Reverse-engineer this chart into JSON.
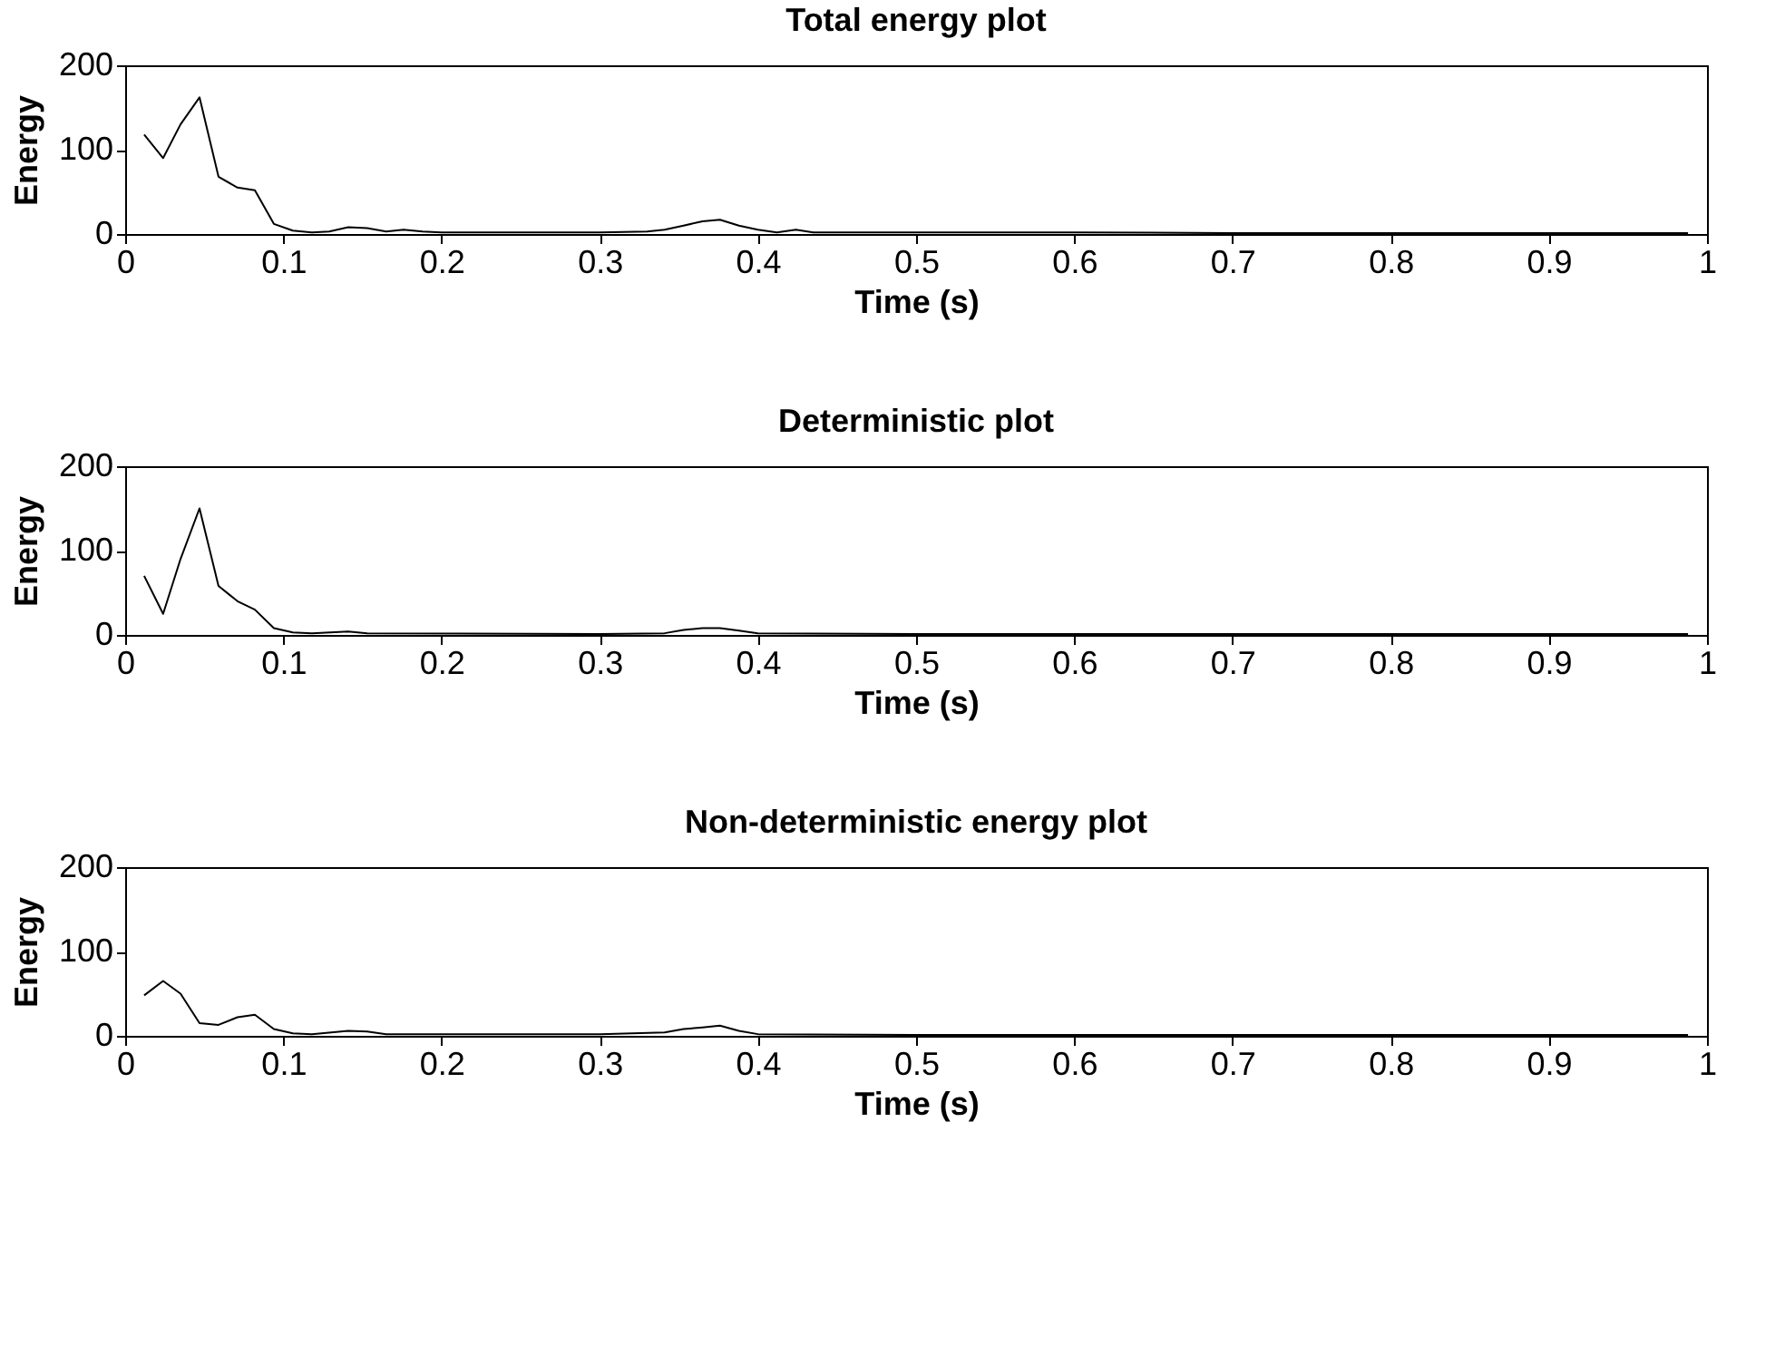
{
  "chart_data": [
    {
      "type": "line",
      "title": "Total energy plot",
      "xlabel": "Time (s)",
      "ylabel": "Energy",
      "xlim": [
        0,
        1
      ],
      "ylim": [
        0,
        200
      ],
      "xticks": [
        0,
        0.1,
        0.2,
        0.3,
        0.4,
        0.5,
        0.6,
        0.7,
        0.8,
        0.9,
        1
      ],
      "yticks": [
        0,
        100,
        200
      ],
      "grid": false,
      "series": [
        {
          "color": "#000000",
          "x": [
            0.012,
            0.024,
            0.035,
            0.047,
            0.059,
            0.071,
            0.082,
            0.094,
            0.106,
            0.118,
            0.129,
            0.141,
            0.153,
            0.165,
            0.176,
            0.188,
            0.2,
            0.25,
            0.3,
            0.33,
            0.341,
            0.353,
            0.365,
            0.376,
            0.388,
            0.4,
            0.412,
            0.424,
            0.435,
            0.5,
            0.6,
            0.7,
            0.8,
            0.9,
            0.988
          ],
          "values": [
            118,
            90,
            130,
            162,
            68,
            55,
            52,
            12,
            4,
            2,
            3,
            8,
            7,
            3,
            5,
            3,
            2,
            2,
            2,
            3,
            5,
            10,
            15,
            17,
            10,
            5,
            2,
            5,
            2,
            2,
            2,
            1,
            1,
            1,
            1
          ]
        }
      ]
    },
    {
      "type": "line",
      "title": "Deterministic plot",
      "xlabel": "Time (s)",
      "ylabel": "Energy",
      "xlim": [
        0,
        1
      ],
      "ylim": [
        0,
        200
      ],
      "xticks": [
        0,
        0.1,
        0.2,
        0.3,
        0.4,
        0.5,
        0.6,
        0.7,
        0.8,
        0.9,
        1
      ],
      "yticks": [
        0,
        100,
        200
      ],
      "grid": false,
      "series": [
        {
          "color": "#000000",
          "x": [
            0.012,
            0.024,
            0.035,
            0.047,
            0.059,
            0.071,
            0.082,
            0.094,
            0.106,
            0.118,
            0.141,
            0.153,
            0.3,
            0.341,
            0.353,
            0.365,
            0.376,
            0.388,
            0.4,
            0.5,
            0.7,
            0.988
          ],
          "values": [
            70,
            25,
            90,
            150,
            58,
            40,
            30,
            8,
            3,
            2,
            4,
            2,
            1,
            2,
            6,
            8,
            8,
            5,
            2,
            1,
            1,
            1
          ]
        }
      ]
    },
    {
      "type": "line",
      "title": "Non-deterministic energy plot",
      "xlabel": "Time (s)",
      "ylabel": "Energy",
      "xlim": [
        0,
        1
      ],
      "ylim": [
        0,
        200
      ],
      "xticks": [
        0,
        0.1,
        0.2,
        0.3,
        0.4,
        0.5,
        0.6,
        0.7,
        0.8,
        0.9,
        1
      ],
      "yticks": [
        0,
        100,
        200
      ],
      "grid": false,
      "series": [
        {
          "color": "#000000",
          "x": [
            0.012,
            0.024,
            0.035,
            0.047,
            0.059,
            0.071,
            0.082,
            0.094,
            0.106,
            0.118,
            0.141,
            0.153,
            0.165,
            0.3,
            0.341,
            0.353,
            0.365,
            0.376,
            0.388,
            0.4,
            0.5,
            0.7,
            0.988
          ],
          "values": [
            48,
            65,
            50,
            15,
            13,
            22,
            25,
            8,
            3,
            2,
            6,
            5,
            2,
            2,
            4,
            8,
            10,
            12,
            6,
            2,
            1,
            1,
            1
          ]
        }
      ]
    }
  ]
}
